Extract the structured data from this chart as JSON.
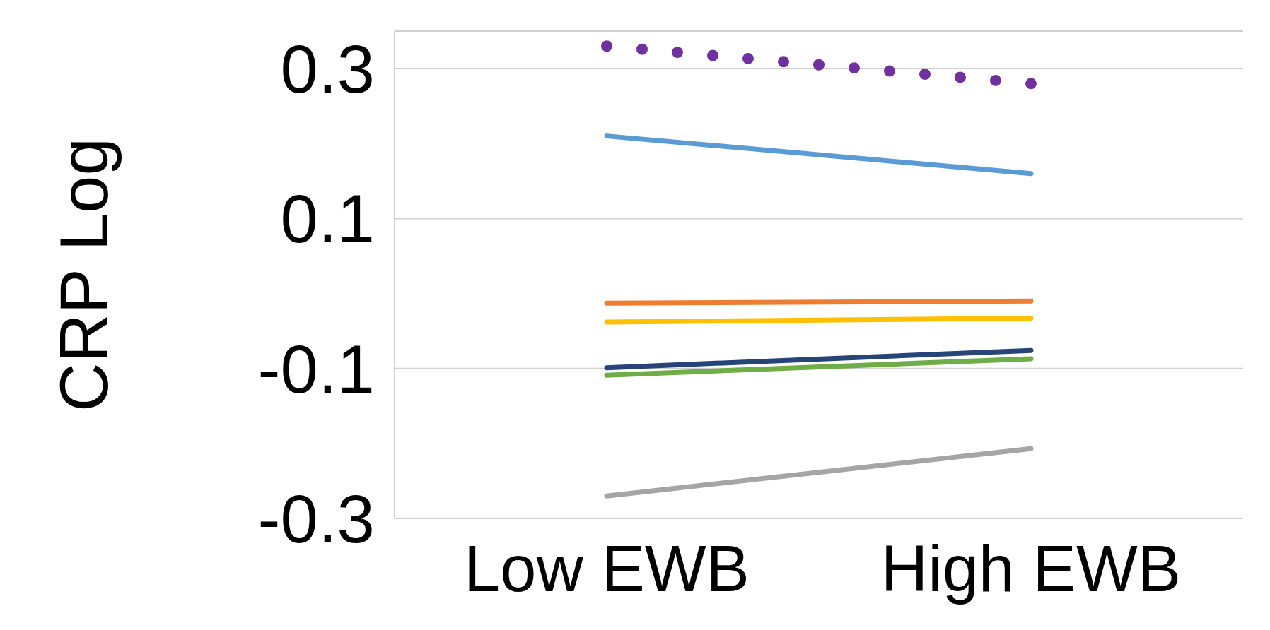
{
  "chart_data": {
    "type": "line",
    "ylabel": "CRP Log",
    "categories": [
      "Low EWB",
      "High EWB"
    ],
    "series": [
      {
        "color": "#7030a0",
        "values": [
          0.33,
          0.28
        ],
        "line_style": "dotted"
      },
      {
        "color": "#5b9bd5",
        "values": [
          0.21,
          0.16
        ]
      },
      {
        "color": "#ed7d31",
        "values": [
          -0.013,
          -0.01
        ]
      },
      {
        "color": "#ffc000",
        "values": [
          -0.038,
          -0.033
        ]
      },
      {
        "color": "#264478",
        "values": [
          -0.099,
          -0.076
        ]
      },
      {
        "color": "#70ad47",
        "values": [
          -0.109,
          -0.087
        ]
      },
      {
        "color": "#a5a5a5",
        "values": [
          -0.27,
          -0.207
        ]
      }
    ],
    "ylim": [
      -0.3,
      0.35
    ],
    "yticks": [
      -0.3,
      -0.1,
      0.1,
      0.3
    ],
    "grid": "y",
    "legend": false,
    "marker": "none"
  }
}
